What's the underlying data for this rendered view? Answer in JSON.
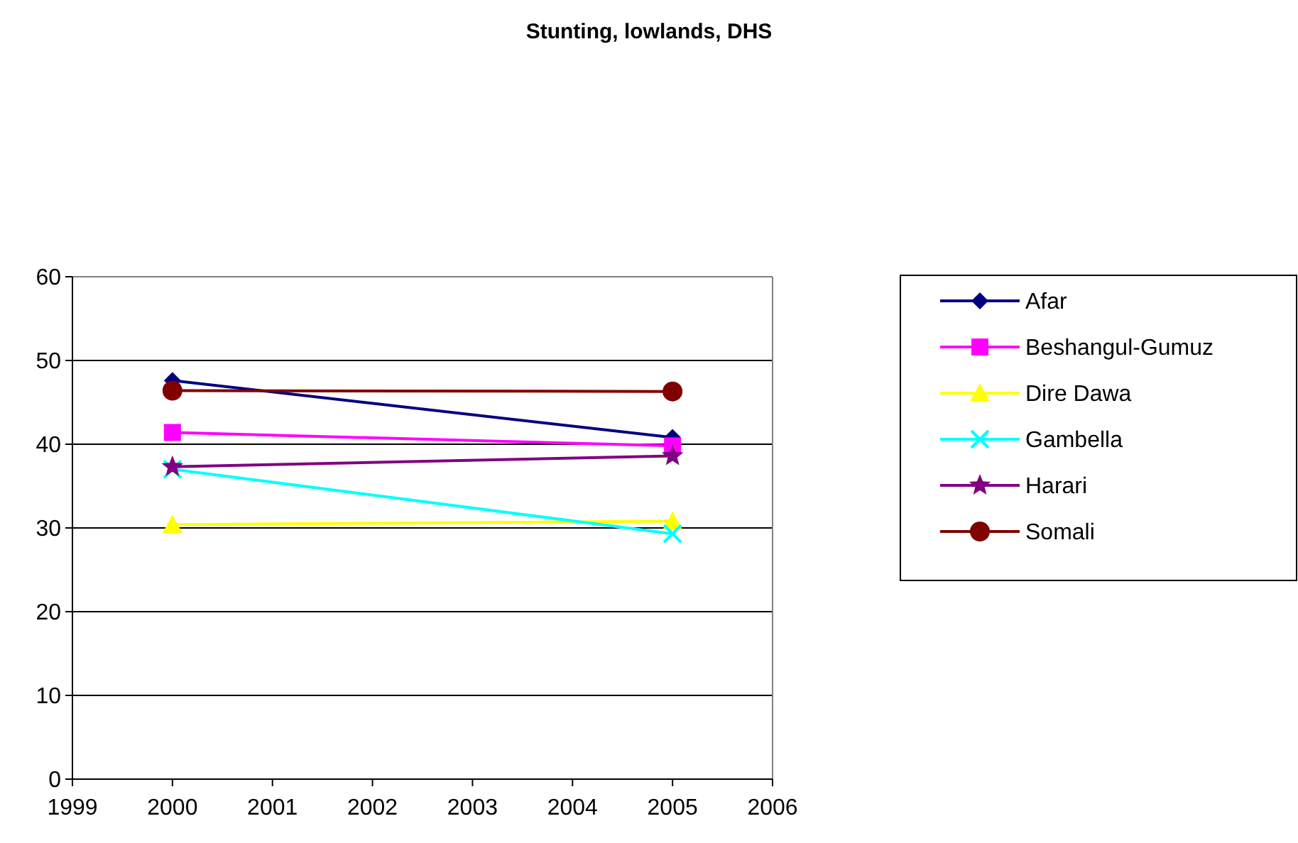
{
  "chart_data": {
    "type": "line",
    "title": "Stunting, lowlands, DHS",
    "x": [
      2000,
      2005
    ],
    "xlim": [
      1999,
      2006
    ],
    "xticks": [
      1999,
      2000,
      2001,
      2002,
      2003,
      2004,
      2005,
      2006
    ],
    "ylim": [
      0,
      60
    ],
    "yticks": [
      0,
      10,
      20,
      30,
      40,
      50,
      60
    ],
    "grid": "y",
    "legend": "right",
    "series": [
      {
        "name": "Afar",
        "color": "#000080",
        "marker": "diamond",
        "values": [
          47.6,
          40.8
        ]
      },
      {
        "name": "Beshangul-Gumuz",
        "color": "#ff00ff",
        "marker": "square",
        "values": [
          41.4,
          39.8
        ]
      },
      {
        "name": "Dire Dawa",
        "color": "#ffff00",
        "marker": "triangle",
        "values": [
          30.4,
          30.8
        ]
      },
      {
        "name": "Gambella",
        "color": "#00ffff",
        "marker": "cross",
        "values": [
          37.0,
          29.3
        ]
      },
      {
        "name": "Harari",
        "color": "#800080",
        "marker": "star",
        "values": [
          37.3,
          38.6
        ]
      },
      {
        "name": "Somali",
        "color": "#800000",
        "marker": "circle",
        "values": [
          46.4,
          46.3
        ]
      }
    ]
  }
}
